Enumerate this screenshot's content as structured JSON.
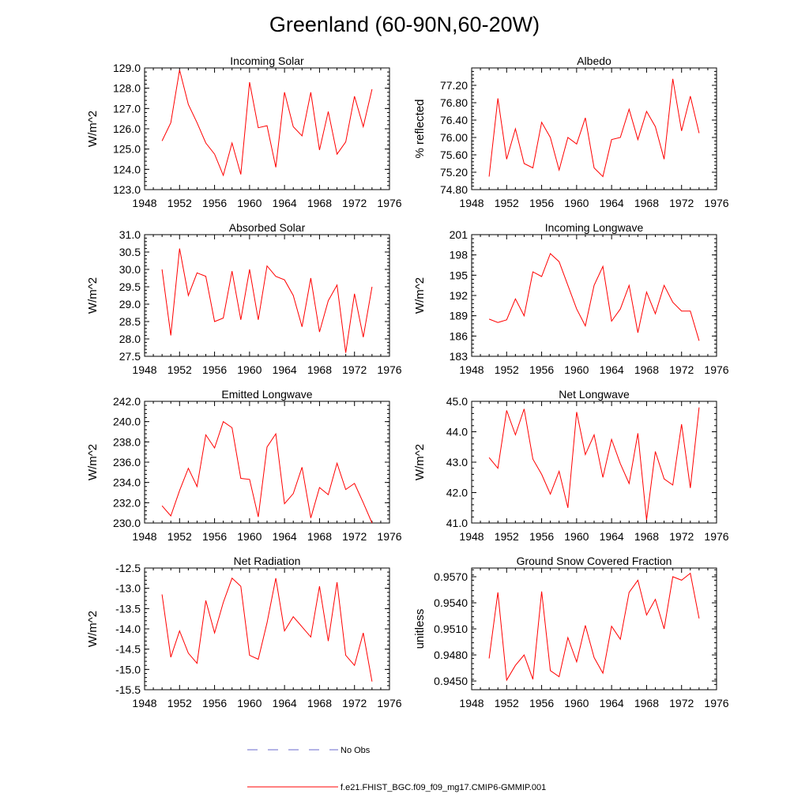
{
  "title": "Greenland (60-90N,60-20W)",
  "colors": {
    "model": "#ff0000",
    "obs": "#6a6acd"
  },
  "legend": {
    "obs_label": "No Obs",
    "model_label": "f.e21.FHIST_BGC.f09_f09_mg17.CMIP6-GMMIP.001"
  },
  "chart_data": [
    {
      "type": "line",
      "title": "Incoming Solar",
      "xlabel": "",
      "ylabel": "W/m^2",
      "xlim": [
        1948,
        1976
      ],
      "ylim": [
        123.0,
        129.0
      ],
      "xticks": [
        1948,
        1952,
        1956,
        1960,
        1964,
        1968,
        1972,
        1976
      ],
      "xtick_labels": [
        "1948",
        "1952",
        "1956",
        "1960",
        "1964",
        "1968",
        "1972",
        "1976"
      ],
      "yticks": [
        123.0,
        124.0,
        125.0,
        126.0,
        127.0,
        128.0,
        129.0
      ],
      "ytick_labels": [
        "123.0",
        "124.0",
        "125.0",
        "126.0",
        "127.0",
        "128.0",
        "129.0"
      ],
      "x": [
        1950,
        1951,
        1952,
        1953,
        1954,
        1955,
        1956,
        1957,
        1958,
        1959,
        1960,
        1961,
        1962,
        1963,
        1964,
        1965,
        1966,
        1967,
        1968,
        1969,
        1970,
        1971,
        1972,
        1973,
        1974
      ],
      "series": [
        {
          "name": "f.e21.FHIST_BGC.f09_f09_mg17.CMIP6-GMMIP.001",
          "values": [
            125.4,
            126.3,
            128.9,
            127.2,
            126.3,
            125.3,
            124.75,
            123.7,
            125.3,
            123.75,
            128.3,
            126.05,
            126.15,
            124.1,
            127.8,
            126.1,
            125.65,
            127.8,
            124.95,
            126.85,
            124.75,
            125.35,
            127.6,
            126.1,
            127.95
          ]
        }
      ]
    },
    {
      "type": "line",
      "title": "Albedo",
      "xlabel": "",
      "ylabel": "% reflected",
      "xlim": [
        1948,
        1976
      ],
      "ylim": [
        74.8,
        77.6
      ],
      "xticks": [
        1948,
        1952,
        1956,
        1960,
        1964,
        1968,
        1972,
        1976
      ],
      "xtick_labels": [
        "1948",
        "1952",
        "1956",
        "1960",
        "1964",
        "1968",
        "1972",
        "1976"
      ],
      "yticks": [
        74.8,
        75.2,
        75.6,
        76.0,
        76.4,
        76.8,
        77.2
      ],
      "ytick_labels": [
        "74.80",
        "75.20",
        "75.60",
        "76.00",
        "76.40",
        "76.80",
        "77.20"
      ],
      "x": [
        1950,
        1951,
        1952,
        1953,
        1954,
        1955,
        1956,
        1957,
        1958,
        1959,
        1960,
        1961,
        1962,
        1963,
        1964,
        1965,
        1966,
        1967,
        1968,
        1969,
        1970,
        1971,
        1972,
        1973,
        1974
      ],
      "series": [
        {
          "name": "f.e21.FHIST_BGC.f09_f09_mg17.CMIP6-GMMIP.001",
          "values": [
            75.1,
            76.9,
            75.5,
            76.2,
            75.4,
            75.3,
            76.35,
            76.0,
            75.25,
            76.0,
            75.85,
            76.45,
            75.3,
            75.1,
            75.95,
            76.0,
            76.65,
            75.95,
            76.6,
            76.25,
            75.5,
            77.35,
            76.15,
            76.95,
            76.1
          ]
        }
      ]
    },
    {
      "type": "line",
      "title": "Absorbed Solar",
      "xlabel": "",
      "ylabel": "W/m^2",
      "xlim": [
        1948,
        1976
      ],
      "ylim": [
        27.5,
        31.0
      ],
      "xticks": [
        1948,
        1952,
        1956,
        1960,
        1964,
        1968,
        1972,
        1976
      ],
      "xtick_labels": [
        "1948",
        "1952",
        "1956",
        "1960",
        "1964",
        "1968",
        "1972",
        "1976"
      ],
      "yticks": [
        27.5,
        28.0,
        28.5,
        29.0,
        29.5,
        30.0,
        30.5,
        31.0
      ],
      "ytick_labels": [
        "27.5",
        "28.0",
        "28.5",
        "29.0",
        "29.5",
        "30.0",
        "30.5",
        "31.0"
      ],
      "x": [
        1950,
        1951,
        1952,
        1953,
        1954,
        1955,
        1956,
        1957,
        1958,
        1959,
        1960,
        1961,
        1962,
        1963,
        1964,
        1965,
        1966,
        1967,
        1968,
        1969,
        1970,
        1971,
        1972,
        1973,
        1974
      ],
      "series": [
        {
          "name": "f.e21.FHIST_BGC.f09_f09_mg17.CMIP6-GMMIP.001",
          "values": [
            30.0,
            28.1,
            30.6,
            29.25,
            29.9,
            29.8,
            28.5,
            28.6,
            29.95,
            28.55,
            30.0,
            28.55,
            30.1,
            29.8,
            29.7,
            29.25,
            28.35,
            29.75,
            28.2,
            29.1,
            29.55,
            27.6,
            29.3,
            28.05,
            29.5
          ]
        }
      ]
    },
    {
      "type": "line",
      "title": "Incoming Longwave",
      "xlabel": "",
      "ylabel": "W/m^2",
      "xlim": [
        1948,
        1976
      ],
      "ylim": [
        183,
        201
      ],
      "xticks": [
        1948,
        1952,
        1956,
        1960,
        1964,
        1968,
        1972,
        1976
      ],
      "xtick_labels": [
        "1948",
        "1952",
        "1956",
        "1960",
        "1964",
        "1968",
        "1972",
        "1976"
      ],
      "yticks": [
        183,
        186,
        189,
        192,
        195,
        198,
        201
      ],
      "ytick_labels": [
        "183",
        "186",
        "189",
        "192",
        "195",
        "198",
        "201"
      ],
      "x": [
        1950,
        1951,
        1952,
        1953,
        1954,
        1955,
        1956,
        1957,
        1958,
        1959,
        1960,
        1961,
        1962,
        1963,
        1964,
        1965,
        1966,
        1967,
        1968,
        1969,
        1970,
        1971,
        1972,
        1973,
        1974
      ],
      "series": [
        {
          "name": "f.e21.FHIST_BGC.f09_f09_mg17.CMIP6-GMMIP.001",
          "values": [
            188.5,
            188.0,
            188.4,
            191.5,
            189.0,
            195.5,
            194.8,
            198.2,
            197.0,
            193.5,
            190.0,
            187.5,
            193.5,
            196.3,
            188.2,
            190.0,
            193.5,
            186.5,
            192.5,
            189.3,
            193.5,
            191.0,
            189.7,
            189.7,
            185.3
          ]
        }
      ]
    },
    {
      "type": "line",
      "title": "Emitted Longwave",
      "xlabel": "",
      "ylabel": "W/m^2",
      "xlim": [
        1948,
        1976
      ],
      "ylim": [
        230.0,
        242.0
      ],
      "xticks": [
        1948,
        1952,
        1956,
        1960,
        1964,
        1968,
        1972,
        1976
      ],
      "xtick_labels": [
        "1948",
        "1952",
        "1956",
        "1960",
        "1964",
        "1968",
        "1972",
        "1976"
      ],
      "yticks": [
        230.0,
        232.0,
        234.0,
        236.0,
        238.0,
        240.0,
        242.0
      ],
      "ytick_labels": [
        "230.0",
        "232.0",
        "234.0",
        "236.0",
        "238.0",
        "240.0",
        "242.0"
      ],
      "x": [
        1950,
        1951,
        1952,
        1953,
        1954,
        1955,
        1956,
        1957,
        1958,
        1959,
        1960,
        1961,
        1962,
        1963,
        1964,
        1965,
        1966,
        1967,
        1968,
        1969,
        1970,
        1971,
        1972,
        1973,
        1974
      ],
      "series": [
        {
          "name": "f.e21.FHIST_BGC.f09_f09_mg17.CMIP6-GMMIP.001",
          "values": [
            231.7,
            230.7,
            233.2,
            235.4,
            233.6,
            238.7,
            237.4,
            240.0,
            239.4,
            234.4,
            234.3,
            230.6,
            237.5,
            238.8,
            231.9,
            232.9,
            235.5,
            230.5,
            233.5,
            232.8,
            235.9,
            233.3,
            233.9,
            232.0,
            230.0
          ]
        }
      ]
    },
    {
      "type": "line",
      "title": "Net Longwave",
      "xlabel": "",
      "ylabel": "W/m^2",
      "xlim": [
        1948,
        1976
      ],
      "ylim": [
        41.0,
        45.0
      ],
      "xticks": [
        1948,
        1952,
        1956,
        1960,
        1964,
        1968,
        1972,
        1976
      ],
      "xtick_labels": [
        "1948",
        "1952",
        "1956",
        "1960",
        "1964",
        "1968",
        "1972",
        "1976"
      ],
      "yticks": [
        41.0,
        42.0,
        43.0,
        44.0,
        45.0
      ],
      "ytick_labels": [
        "41.0",
        "42.0",
        "43.0",
        "44.0",
        "45.0"
      ],
      "x": [
        1950,
        1951,
        1952,
        1953,
        1954,
        1955,
        1956,
        1957,
        1958,
        1959,
        1960,
        1961,
        1962,
        1963,
        1964,
        1965,
        1966,
        1967,
        1968,
        1969,
        1970,
        1971,
        1972,
        1973,
        1974
      ],
      "series": [
        {
          "name": "f.e21.FHIST_BGC.f09_f09_mg17.CMIP6-GMMIP.001",
          "values": [
            43.15,
            42.8,
            44.7,
            43.9,
            44.75,
            43.1,
            42.6,
            41.95,
            42.7,
            41.5,
            44.65,
            43.25,
            43.9,
            42.5,
            43.75,
            42.95,
            42.3,
            43.95,
            41.1,
            43.35,
            42.45,
            42.25,
            44.25,
            42.15,
            44.8
          ]
        }
      ]
    },
    {
      "type": "line",
      "title": "Net Radiation",
      "xlabel": "",
      "ylabel": "W/m^2",
      "xlim": [
        1948,
        1976
      ],
      "ylim": [
        -15.5,
        -12.5
      ],
      "xticks": [
        1948,
        1952,
        1956,
        1960,
        1964,
        1968,
        1972,
        1976
      ],
      "xtick_labels": [
        "1948",
        "1952",
        "1956",
        "1960",
        "1964",
        "1968",
        "1972",
        "1976"
      ],
      "yticks": [
        -15.5,
        -15.0,
        -14.5,
        -14.0,
        -13.5,
        -13.0,
        -12.5
      ],
      "ytick_labels": [
        "-15.5",
        "-15.0",
        "-14.5",
        "-14.0",
        "-13.5",
        "-13.0",
        "-12.5"
      ],
      "x": [
        1950,
        1951,
        1952,
        1953,
        1954,
        1955,
        1956,
        1957,
        1958,
        1959,
        1960,
        1961,
        1962,
        1963,
        1964,
        1965,
        1966,
        1967,
        1968,
        1969,
        1970,
        1971,
        1972,
        1973,
        1974
      ],
      "series": [
        {
          "name": "f.e21.FHIST_BGC.f09_f09_mg17.CMIP6-GMMIP.001",
          "values": [
            -13.15,
            -14.7,
            -14.05,
            -14.6,
            -14.85,
            -13.3,
            -14.1,
            -13.35,
            -12.75,
            -12.95,
            -14.65,
            -14.75,
            -13.85,
            -12.75,
            -14.05,
            -13.7,
            -13.95,
            -14.2,
            -12.95,
            -14.3,
            -12.85,
            -14.65,
            -14.9,
            -14.1,
            -15.3
          ]
        }
      ]
    },
    {
      "type": "line",
      "title": "Ground Snow Covered Fraction",
      "xlabel": "",
      "ylabel": "unitless",
      "xlim": [
        1948,
        1976
      ],
      "ylim": [
        0.944,
        0.958
      ],
      "xticks": [
        1948,
        1952,
        1956,
        1960,
        1964,
        1968,
        1972,
        1976
      ],
      "xtick_labels": [
        "1948",
        "1952",
        "1956",
        "1960",
        "1964",
        "1968",
        "1972",
        "1976"
      ],
      "yticks": [
        0.945,
        0.948,
        0.951,
        0.954,
        0.957
      ],
      "ytick_labels": [
        "0.9450",
        "0.9480",
        "0.9510",
        "0.9540",
        "0.9570"
      ],
      "x": [
        1950,
        1951,
        1952,
        1953,
        1954,
        1955,
        1956,
        1957,
        1958,
        1959,
        1960,
        1961,
        1962,
        1963,
        1964,
        1965,
        1966,
        1967,
        1968,
        1969,
        1970,
        1971,
        1972,
        1973,
        1974
      ],
      "series": [
        {
          "name": "f.e21.FHIST_BGC.f09_f09_mg17.CMIP6-GMMIP.001",
          "values": [
            0.9476,
            0.9552,
            0.9451,
            0.9468,
            0.948,
            0.9452,
            0.9553,
            0.9462,
            0.9455,
            0.95,
            0.9472,
            0.9514,
            0.9477,
            0.9459,
            0.9513,
            0.9498,
            0.9552,
            0.9566,
            0.9526,
            0.9544,
            0.951,
            0.957,
            0.9566,
            0.9574,
            0.9522
          ]
        }
      ]
    }
  ]
}
